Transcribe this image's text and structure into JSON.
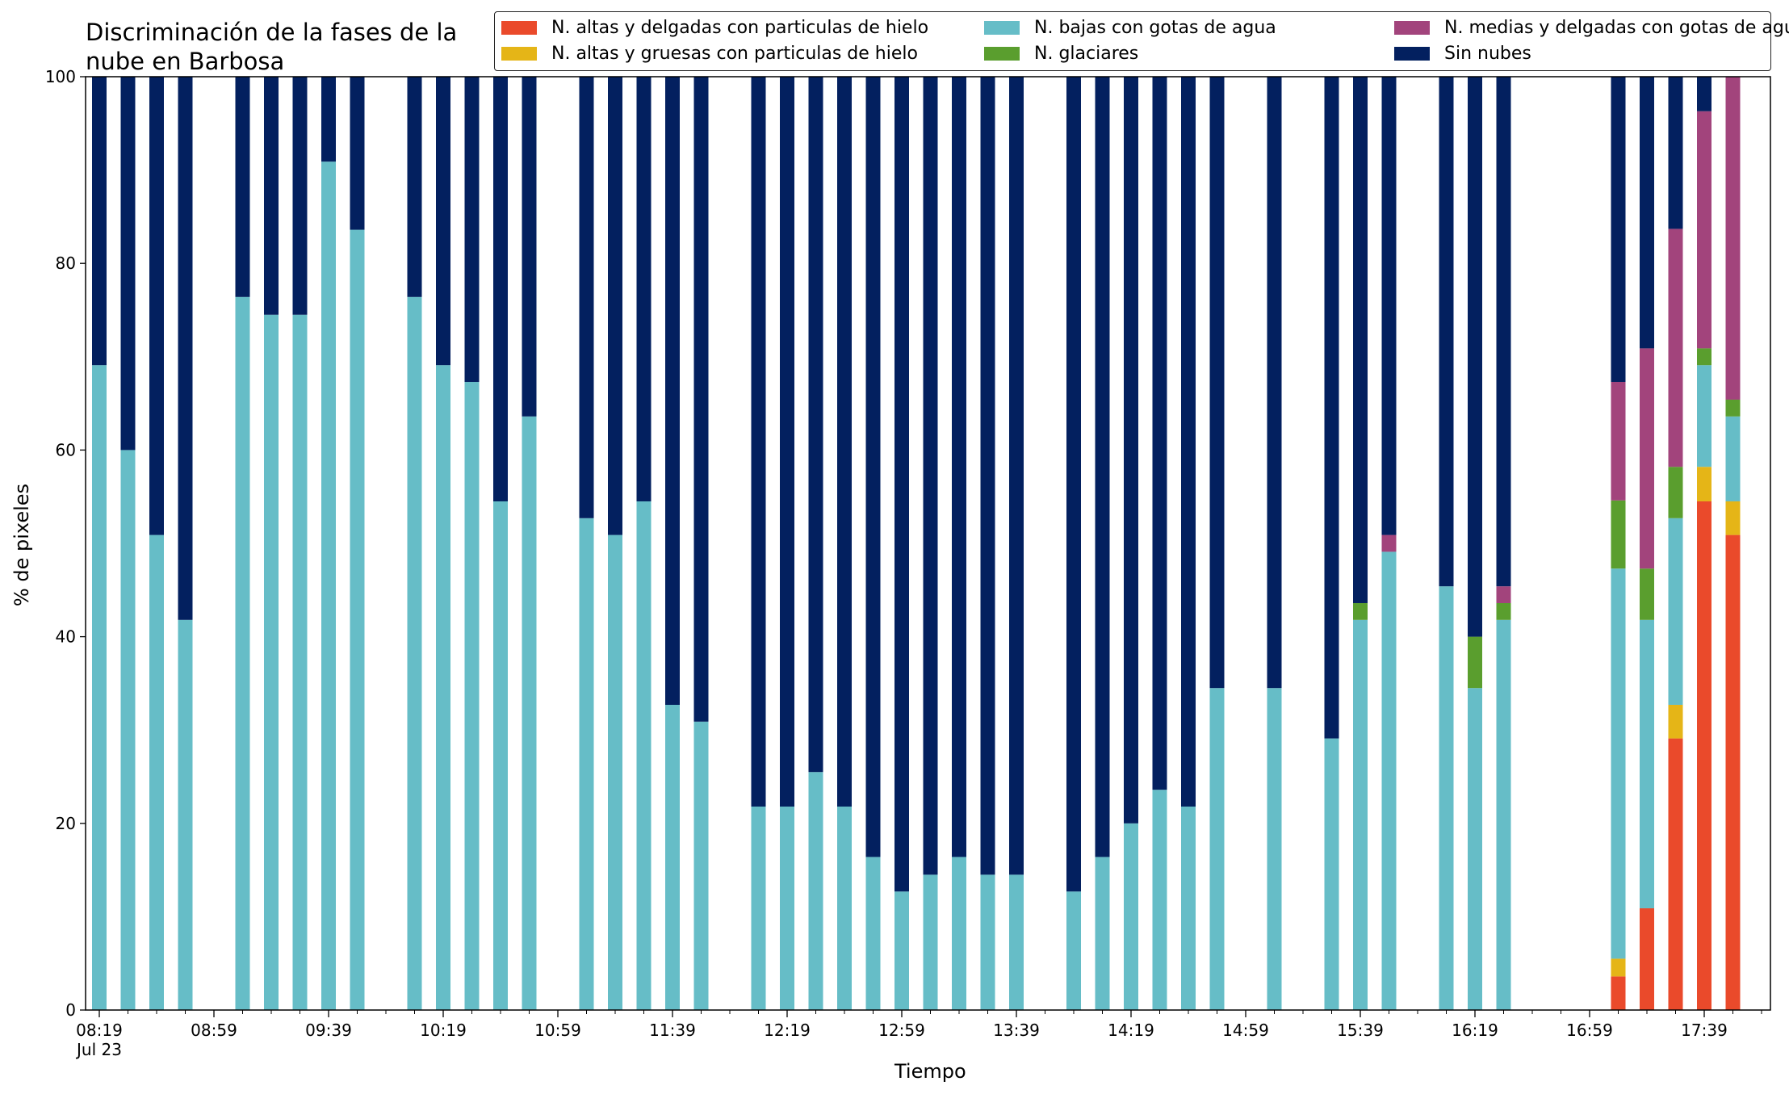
{
  "chart_data": {
    "type": "bar",
    "stacked": true,
    "title": "Discriminación de la fases de la\nnube en Barbosa",
    "xlabel": "Tiempo",
    "ylabel": "% de pixeles",
    "ylim": [
      0,
      100
    ],
    "yticks": [
      0,
      20,
      40,
      60,
      80,
      100
    ],
    "grid": false,
    "legend_position": "top-right",
    "x_major_ticks": [
      {
        "time": "08:19",
        "label": "08:19",
        "sublabel": "Jul 23"
      },
      {
        "time": "08:59",
        "label": "08:59"
      },
      {
        "time": "09:39",
        "label": "09:39"
      },
      {
        "time": "10:19",
        "label": "10:19"
      },
      {
        "time": "10:59",
        "label": "10:59"
      },
      {
        "time": "11:39",
        "label": "11:39"
      },
      {
        "time": "12:19",
        "label": "12:19"
      },
      {
        "time": "12:59",
        "label": "12:59"
      },
      {
        "time": "13:39",
        "label": "13:39"
      },
      {
        "time": "14:19",
        "label": "14:19"
      },
      {
        "time": "14:59",
        "label": "14:59"
      },
      {
        "time": "15:39",
        "label": "15:39"
      },
      {
        "time": "16:19",
        "label": "16:19"
      },
      {
        "time": "16:59",
        "label": "16:59"
      },
      {
        "time": "17:39",
        "label": "17:39"
      }
    ],
    "x": [
      "08:19",
      "08:29",
      "08:39",
      "08:49",
      "09:09",
      "09:19",
      "09:29",
      "09:39",
      "09:49",
      "10:09",
      "10:19",
      "10:29",
      "10:39",
      "10:49",
      "11:09",
      "11:19",
      "11:29",
      "11:39",
      "11:49",
      "12:09",
      "12:19",
      "12:29",
      "12:39",
      "12:49",
      "12:59",
      "13:09",
      "13:19",
      "13:29",
      "13:39",
      "13:59",
      "14:09",
      "14:19",
      "14:29",
      "14:39",
      "14:49",
      "15:09",
      "15:29",
      "15:39",
      "15:49",
      "16:09",
      "16:19",
      "16:29",
      "16:39",
      "16:49",
      "17:09",
      "17:19",
      "17:29",
      "17:39",
      "17:49"
    ],
    "series": [
      {
        "name": "N. altas y delgadas con particulas de hielo",
        "color": "#ea4a2b",
        "values": [
          0,
          0,
          0,
          0,
          0,
          0,
          0,
          0,
          0,
          0,
          0,
          0,
          0,
          0,
          0,
          0,
          0,
          0,
          0,
          0,
          0,
          0,
          0,
          0,
          0,
          0,
          0,
          0,
          0,
          0,
          0,
          0,
          0,
          0,
          0,
          0,
          0,
          0,
          0,
          0,
          0,
          0,
          0,
          0,
          3.6,
          10.9,
          29.1,
          54.5,
          50.9
        ]
      },
      {
        "name": "N. altas y gruesas con particulas de hielo",
        "color": "#e5b517",
        "values": [
          0,
          0,
          0,
          0,
          0,
          0,
          0,
          0,
          0,
          0,
          0,
          0,
          0,
          0,
          0,
          0,
          0,
          0,
          0,
          0,
          0,
          0,
          0,
          0,
          0,
          0,
          0,
          0,
          0,
          0,
          0,
          0,
          0,
          0,
          0,
          0,
          0,
          0,
          0,
          0,
          0,
          0,
          0,
          0,
          1.9,
          0,
          3.6,
          3.7,
          3.6
        ]
      },
      {
        "name": "N. bajas con gotas de agua",
        "color": "#66bdc7",
        "values": [
          69.1,
          60,
          50.9,
          41.8,
          76.4,
          74.5,
          74.5,
          90.9,
          83.6,
          76.4,
          69.1,
          67.3,
          54.5,
          63.6,
          52.7,
          50.9,
          54.5,
          32.7,
          30.9,
          21.8,
          21.8,
          25.5,
          21.8,
          16.4,
          12.7,
          14.5,
          16.4,
          14.5,
          14.5,
          12.7,
          16.4,
          20,
          23.6,
          21.8,
          34.5,
          34.5,
          29.1,
          41.8,
          49.1,
          45.4,
          34.5,
          41.8,
          0,
          0,
          41.8,
          30.9,
          20,
          10.9,
          9.1
        ]
      },
      {
        "name": "N. glaciares",
        "color": "#5a9e2e",
        "values": [
          0,
          0,
          0,
          0,
          0,
          0,
          0,
          0,
          0,
          0,
          0,
          0,
          0,
          0,
          0,
          0,
          0,
          0,
          0,
          0,
          0,
          0,
          0,
          0,
          0,
          0,
          0,
          0,
          0,
          0,
          0,
          0,
          0,
          0,
          0,
          0,
          0,
          1.8,
          0,
          0,
          5.5,
          1.8,
          0,
          0,
          7.3,
          5.5,
          5.5,
          1.8,
          1.8
        ]
      },
      {
        "name": "N. medias y delgadas con gotas de agua",
        "color": "#a2447c",
        "values": [
          0,
          0,
          0,
          0,
          0,
          0,
          0,
          0,
          0,
          0,
          0,
          0,
          0,
          0,
          0,
          0,
          0,
          0,
          0,
          0,
          0,
          0,
          0,
          0,
          0,
          0,
          0,
          0,
          0,
          0,
          0,
          0,
          0,
          0,
          0,
          0,
          0,
          0,
          1.8,
          0,
          0,
          1.8,
          0,
          0,
          12.7,
          23.6,
          25.5,
          25.4,
          34.6
        ]
      },
      {
        "name": "Sin nubes",
        "color": "#03205f",
        "values": [
          30.9,
          40,
          49.1,
          58.2,
          23.6,
          25.5,
          25.5,
          9.1,
          16.4,
          23.6,
          30.9,
          32.7,
          45.5,
          36.4,
          47.3,
          49.1,
          45.5,
          67.3,
          69.1,
          78.2,
          78.2,
          74.5,
          78.2,
          83.6,
          87.3,
          85.5,
          83.6,
          85.5,
          85.5,
          87.3,
          83.6,
          80,
          76.4,
          78.2,
          65.5,
          65.5,
          70.9,
          56.4,
          49.1,
          54.6,
          60,
          54.6,
          0,
          0,
          32.7,
          29.1,
          16.3,
          3.7,
          0
        ]
      }
    ]
  }
}
